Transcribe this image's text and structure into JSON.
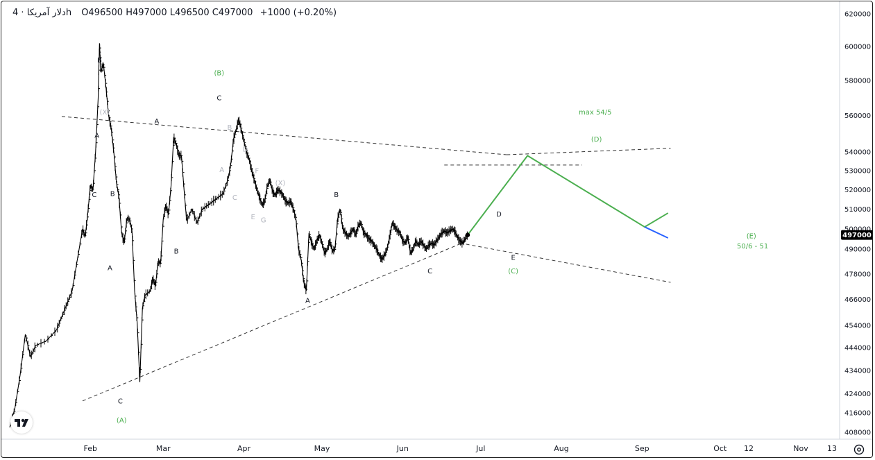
{
  "header": {
    "symbol": "دلار آمریکا",
    "timeframe": "· 4h",
    "ohlc": "O496500 H497000 L496500 C497000",
    "change": "+1000 (+0.20%)"
  },
  "last_price_label": "497000",
  "colors": {
    "price_bars": "#000000",
    "projection": "#4caf50",
    "projection_tail": "#2962ff",
    "wave_green": "#4caf50",
    "wave_gray": "#b2b5be",
    "wave_black": "#131722",
    "trendline": "#333333",
    "last_price_bg": "#000000"
  },
  "icons": {
    "logo": "tradingview-logo-icon",
    "settings": "gear-icon"
  },
  "chart_data": {
    "type": "line",
    "x_unit": "days since Jan 1",
    "x_range": [
      -3,
      331
    ],
    "y_scale": "log",
    "y_ticks": [
      620000,
      600000,
      580000,
      560000,
      540000,
      530000,
      520000,
      510000,
      500000,
      490000,
      478000,
      466000,
      454000,
      444000,
      434000,
      424000,
      416000,
      408000
    ],
    "x_ticks": [
      {
        "label": "Feb",
        "x": 31
      },
      {
        "label": "Mar",
        "x": 59
      },
      {
        "label": "Apr",
        "x": 90
      },
      {
        "label": "May",
        "x": 120
      },
      {
        "label": "Jun",
        "x": 151
      },
      {
        "label": "Jul",
        "x": 181
      },
      {
        "label": "Aug",
        "x": 212
      },
      {
        "label": "Sep",
        "x": 243
      },
      {
        "label": "Oct",
        "x": 273
      },
      {
        "label": "12",
        "x": 284
      },
      {
        "label": "Nov",
        "x": 304
      },
      {
        "label": "13",
        "x": 316
      }
    ],
    "price_path": [
      [
        0,
        410000
      ],
      [
        2,
        418000
      ],
      [
        4,
        432000
      ],
      [
        6,
        450000
      ],
      [
        8,
        440000
      ],
      [
        10,
        445000
      ],
      [
        14,
        447000
      ],
      [
        18,
        452000
      ],
      [
        20,
        458000
      ],
      [
        22,
        464000
      ],
      [
        24,
        470000
      ],
      [
        26,
        485000
      ],
      [
        28,
        500000
      ],
      [
        29,
        496000
      ],
      [
        30,
        508000
      ],
      [
        31,
        522000
      ],
      [
        32,
        520000
      ],
      [
        33,
        540000
      ],
      [
        34,
        570000
      ],
      [
        34.5,
        602000
      ],
      [
        35,
        585000
      ],
      [
        36,
        590000
      ],
      [
        37,
        576000
      ],
      [
        38,
        560000
      ],
      [
        39,
        553000
      ],
      [
        40,
        540000
      ],
      [
        41,
        524000
      ],
      [
        42,
        516000
      ],
      [
        43,
        498000
      ],
      [
        44,
        493000
      ],
      [
        45,
        505000
      ],
      [
        46,
        505000
      ],
      [
        47,
        499000
      ],
      [
        48,
        470000
      ],
      [
        49,
        455000
      ],
      [
        50,
        429000
      ],
      [
        51,
        462000
      ],
      [
        52,
        468000
      ],
      [
        54,
        470000
      ],
      [
        55,
        476000
      ],
      [
        56,
        472000
      ],
      [
        57,
        484000
      ],
      [
        58,
        483000
      ],
      [
        59,
        505000
      ],
      [
        60,
        512000
      ],
      [
        61,
        507000
      ],
      [
        62,
        522000
      ],
      [
        63,
        548000
      ],
      [
        64,
        544000
      ],
      [
        65,
        538000
      ],
      [
        66,
        538000
      ],
      [
        67,
        520000
      ],
      [
        68,
        504000
      ],
      [
        70,
        510000
      ],
      [
        72,
        503000
      ],
      [
        74,
        510000
      ],
      [
        76,
        512000
      ],
      [
        78,
        514000
      ],
      [
        80,
        516000
      ],
      [
        82,
        518000
      ],
      [
        84,
        526000
      ],
      [
        85,
        534000
      ],
      [
        86,
        547000
      ],
      [
        87,
        552000
      ],
      [
        88,
        558000
      ],
      [
        89,
        552000
      ],
      [
        90,
        546000
      ],
      [
        91,
        540000
      ],
      [
        92,
        536000
      ],
      [
        93,
        530000
      ],
      [
        94,
        525000
      ],
      [
        95,
        520000
      ],
      [
        96,
        516000
      ],
      [
        97,
        512000
      ],
      [
        98,
        514000
      ],
      [
        99,
        522000
      ],
      [
        100,
        525000
      ],
      [
        101,
        519000
      ],
      [
        102,
        517000
      ],
      [
        103,
        520000
      ],
      [
        104,
        519000
      ],
      [
        105,
        517000
      ],
      [
        106,
        514000
      ],
      [
        107,
        513000
      ],
      [
        108,
        514000
      ],
      [
        109,
        510000
      ],
      [
        110,
        505000
      ],
      [
        111,
        490000
      ],
      [
        112,
        485000
      ],
      [
        113,
        474000
      ],
      [
        114,
        470000
      ],
      [
        115,
        498000
      ],
      [
        116,
        493000
      ],
      [
        117,
        490000
      ],
      [
        118,
        494000
      ],
      [
        119,
        497000
      ],
      [
        120,
        493000
      ],
      [
        121,
        488000
      ],
      [
        122,
        490000
      ],
      [
        123,
        494000
      ],
      [
        124,
        489000
      ],
      [
        125,
        490000
      ],
      [
        126,
        505000
      ],
      [
        127,
        510000
      ],
      [
        128,
        500000
      ],
      [
        129,
        498000
      ],
      [
        130,
        496000
      ],
      [
        131,
        498000
      ],
      [
        132,
        500000
      ],
      [
        133,
        497000
      ],
      [
        134,
        502000
      ],
      [
        135,
        503000
      ],
      [
        136,
        498000
      ],
      [
        137,
        497000
      ],
      [
        138,
        495000
      ],
      [
        139,
        494000
      ],
      [
        140,
        492000
      ],
      [
        141,
        490000
      ],
      [
        142,
        487000
      ],
      [
        143,
        485000
      ],
      [
        144,
        487000
      ],
      [
        145,
        490000
      ],
      [
        146,
        496000
      ],
      [
        147,
        503000
      ],
      [
        148,
        501000
      ],
      [
        149,
        499000
      ],
      [
        150,
        498000
      ],
      [
        151,
        494000
      ],
      [
        152,
        493000
      ],
      [
        153,
        496000
      ],
      [
        154,
        488000
      ],
      [
        155,
        490000
      ],
      [
        156,
        494000
      ],
      [
        157,
        492000
      ],
      [
        158,
        494000
      ],
      [
        159,
        492000
      ],
      [
        160,
        490000
      ],
      [
        161,
        492000
      ],
      [
        162,
        493000
      ],
      [
        163,
        492000
      ],
      [
        164,
        494000
      ],
      [
        165,
        496000
      ],
      [
        166,
        498000
      ],
      [
        167,
        499000
      ],
      [
        168,
        498000
      ],
      [
        169,
        499000
      ],
      [
        170,
        500000
      ],
      [
        171,
        499000
      ],
      [
        172,
        496000
      ],
      [
        173,
        494000
      ],
      [
        174,
        493000
      ],
      [
        175,
        495000
      ],
      [
        176,
        497000
      ]
    ],
    "projection_path": [
      [
        176,
        497000
      ],
      [
        199,
        538000
      ],
      [
        244,
        501000
      ],
      [
        253,
        508000
      ]
    ],
    "projection_tail": [
      [
        244,
        501000
      ],
      [
        253,
        495500
      ]
    ],
    "trendlines": [
      {
        "style": "dashed",
        "from": [
          20,
          559500
        ],
        "to": [
          191,
          538500
        ]
      },
      {
        "style": "dashed",
        "from": [
          191,
          538500
        ],
        "to": [
          254,
          542000
        ]
      },
      {
        "style": "dashed",
        "from": [
          173,
          493000
        ],
        "to": [
          254,
          474000
        ]
      },
      {
        "style": "dashed",
        "from": [
          28,
          421000
        ],
        "to": [
          173,
          492500
        ]
      },
      {
        "style": "dashed",
        "from": [
          167,
          533000
        ],
        "to": [
          220,
          533000
        ]
      }
    ],
    "last_price": 497000,
    "annotations": [
      {
        "text": "B",
        "x": 34.5,
        "y": 592000,
        "color": "black"
      },
      {
        "text": "(X)",
        "x": 36.5,
        "y": 562000,
        "color": "gray"
      },
      {
        "text": "A",
        "x": 33.5,
        "y": 549000,
        "color": "black"
      },
      {
        "text": "C",
        "x": 32.5,
        "y": 517500,
        "color": "black"
      },
      {
        "text": "B",
        "x": 39.5,
        "y": 518000,
        "color": "black"
      },
      {
        "text": "A",
        "x": 38.5,
        "y": 481000,
        "color": "black"
      },
      {
        "text": "C",
        "x": 42.5,
        "y": 421000,
        "color": "black"
      },
      {
        "text": "(A)",
        "x": 43,
        "y": 413000,
        "color": "green"
      },
      {
        "text": "A",
        "x": 56.5,
        "y": 557000,
        "color": "black"
      },
      {
        "text": "B",
        "x": 64,
        "y": 489000,
        "color": "black"
      },
      {
        "text": "(B)",
        "x": 80.5,
        "y": 584500,
        "color": "green"
      },
      {
        "text": "C",
        "x": 80.5,
        "y": 570000,
        "color": "black"
      },
      {
        "text": "B",
        "x": 84.5,
        "y": 553500,
        "color": "gray"
      },
      {
        "text": "D",
        "x": 90.5,
        "y": 541500,
        "color": "gray"
      },
      {
        "text": "A",
        "x": 81.5,
        "y": 530500,
        "color": "gray"
      },
      {
        "text": "F",
        "x": 95,
        "y": 530000,
        "color": "gray"
      },
      {
        "text": "C",
        "x": 86.5,
        "y": 516000,
        "color": "gray"
      },
      {
        "text": "(X)",
        "x": 104,
        "y": 523500,
        "color": "gray"
      },
      {
        "text": "E",
        "x": 93.5,
        "y": 506000,
        "color": "gray"
      },
      {
        "text": "G",
        "x": 97.5,
        "y": 504500,
        "color": "gray"
      },
      {
        "text": "B",
        "x": 125.5,
        "y": 517500,
        "color": "black"
      },
      {
        "text": "A",
        "x": 114.5,
        "y": 465500,
        "color": "black"
      },
      {
        "text": "C",
        "x": 161.5,
        "y": 479500,
        "color": "black"
      },
      {
        "text": "D",
        "x": 188,
        "y": 507500,
        "color": "black"
      },
      {
        "text": "E",
        "x": 193.5,
        "y": 486000,
        "color": "black"
      },
      {
        "text": "(C)",
        "x": 193.5,
        "y": 479500,
        "color": "green"
      },
      {
        "text": "max 54/5",
        "x": 225,
        "y": 562000,
        "color": "green"
      },
      {
        "text": "(D)",
        "x": 225.5,
        "y": 547000,
        "color": "green"
      },
      {
        "text": "(E)",
        "x": 285,
        "y": 496500,
        "color": "green"
      },
      {
        "text": "50/6 - 51",
        "x": 285.5,
        "y": 491500,
        "color": "green"
      }
    ]
  }
}
